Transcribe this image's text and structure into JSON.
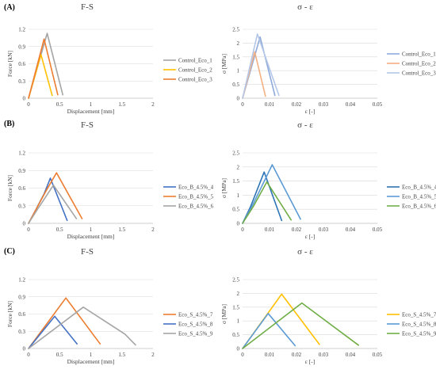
{
  "chart_data": [
    {
      "type": "line",
      "panel": "(A)",
      "title": "F-S",
      "xlabel": "Displacement [mm]",
      "ylabel": "Force [kN]",
      "xlim": [
        0,
        2
      ],
      "ylim": [
        0,
        1.2
      ],
      "xticks": [
        "0",
        "0.5",
        "1",
        "1.5",
        "2"
      ],
      "yticks": [
        "0",
        "0.3",
        "0.6",
        "0.9",
        "1.2"
      ],
      "grid": true,
      "legend": "right",
      "series": [
        {
          "name": "Control_Eco_1",
          "color": "#a5a5a5",
          "points": [
            [
              0,
              0
            ],
            [
              0.3,
              1.13
            ],
            [
              0.55,
              0.06
            ]
          ]
        },
        {
          "name": "Control_Eco_2",
          "color": "#ffc000",
          "points": [
            [
              0,
              0
            ],
            [
              0.2,
              0.76
            ],
            [
              0.38,
              0.05
            ]
          ]
        },
        {
          "name": "Control_Eco_3",
          "color": "#ed7d31",
          "points": [
            [
              0,
              0
            ],
            [
              0.25,
              1.03
            ],
            [
              0.47,
              0.06
            ]
          ]
        }
      ]
    },
    {
      "type": "line",
      "panel": "",
      "title": "σ - ε",
      "xlabel": "ε [-]",
      "ylabel": "σ [MPa]",
      "xlim": [
        0,
        0.05
      ],
      "ylim": [
        0,
        2.5
      ],
      "xticks": [
        "0",
        "0.01",
        "0.02",
        "0.03",
        "0.04",
        "0.05"
      ],
      "yticks": [
        "0",
        "0.5",
        "1",
        "1.5",
        "2",
        "2.5"
      ],
      "grid": true,
      "legend": "right",
      "series": [
        {
          "name": "Control_Eco_1",
          "color": "#8faadc",
          "points": [
            [
              0,
              0
            ],
            [
              0.0065,
              2.22
            ],
            [
              0.012,
              0.1
            ]
          ]
        },
        {
          "name": "Control_Eco_2",
          "color": "#f4b183",
          "points": [
            [
              0,
              0
            ],
            [
              0.0045,
              1.68
            ],
            [
              0.0085,
              0.07
            ]
          ]
        },
        {
          "name": "Control_Eco_3",
          "color": "#b4c7e7",
          "points": [
            [
              0,
              0
            ],
            [
              0.0055,
              2.33
            ],
            [
              0.0135,
              0.1
            ]
          ]
        }
      ]
    },
    {
      "type": "line",
      "panel": "(B)",
      "title": "F-S",
      "xlabel": "Displacement [mm]",
      "ylabel": "Force [kN]",
      "xlim": [
        0,
        2
      ],
      "ylim": [
        0,
        1.2
      ],
      "xticks": [
        "0",
        "0.5",
        "1",
        "1.5",
        "2"
      ],
      "yticks": [
        "0",
        "0.3",
        "0.6",
        "0.9",
        "1.2"
      ],
      "grid": true,
      "legend": "right",
      "series": [
        {
          "name": "Eco_B_4.5%_4",
          "color": "#4472c4",
          "points": [
            [
              0,
              0
            ],
            [
              0.1,
              0.2
            ],
            [
              0.25,
              0.5
            ],
            [
              0.35,
              0.77
            ],
            [
              0.62,
              0.05
            ]
          ]
        },
        {
          "name": "Eco_B_4.5%_5",
          "color": "#ed7d31",
          "points": [
            [
              0,
              0
            ],
            [
              0.1,
              0.2
            ],
            [
              0.28,
              0.55
            ],
            [
              0.45,
              0.86
            ],
            [
              0.86,
              0.08
            ]
          ]
        },
        {
          "name": "Eco_B_4.5%_6",
          "color": "#a5a5a5",
          "points": [
            [
              0,
              0
            ],
            [
              0.15,
              0.25
            ],
            [
              0.4,
              0.65
            ],
            [
              0.77,
              0.08
            ]
          ]
        }
      ]
    },
    {
      "type": "line",
      "panel": "",
      "title": "σ - ε",
      "xlabel": "ε [-]",
      "ylabel": "σ [MPa]",
      "xlim": [
        0,
        0.05
      ],
      "ylim": [
        0,
        2.5
      ],
      "xticks": [
        "0",
        "0.01",
        "0.02",
        "0.03",
        "0.04",
        "0.05"
      ],
      "yticks": [
        "0",
        "0.5",
        "1",
        "1.5",
        "2",
        "2.5"
      ],
      "grid": true,
      "legend": "right",
      "series": [
        {
          "name": "Eco_B_4.5%_4",
          "color": "#2e75b6",
          "points": [
            [
              0,
              0
            ],
            [
              0.003,
              0.6
            ],
            [
              0.008,
              1.82
            ],
            [
              0.0145,
              0.1
            ]
          ]
        },
        {
          "name": "Eco_B_4.5%_5",
          "color": "#5b9bd5",
          "points": [
            [
              0,
              0
            ],
            [
              0.004,
              0.7
            ],
            [
              0.011,
              2.08
            ],
            [
              0.0215,
              0.15
            ]
          ]
        },
        {
          "name": "Eco_B_4.5%_6",
          "color": "#70ad47",
          "points": [
            [
              0,
              0
            ],
            [
              0.004,
              0.6
            ],
            [
              0.009,
              1.47
            ],
            [
              0.018,
              0.12
            ]
          ]
        }
      ]
    },
    {
      "type": "line",
      "panel": "(C)",
      "title": "F-S",
      "xlabel": "Displacement [mm]",
      "ylabel": "Force [kN]",
      "xlim": [
        0,
        2
      ],
      "ylim": [
        0,
        1.2
      ],
      "xticks": [
        "0",
        "0.5",
        "1",
        "1.5",
        "2"
      ],
      "yticks": [
        "0",
        "0.3",
        "0.6",
        "0.9",
        "1.2"
      ],
      "grid": true,
      "legend": "right",
      "series": [
        {
          "name": "Eco_S_4.5%_7",
          "color": "#ed7d31",
          "points": [
            [
              0,
              0
            ],
            [
              0.6,
              0.88
            ],
            [
              1.15,
              0.08
            ]
          ]
        },
        {
          "name": "Eco_S_4.5%_8",
          "color": "#4472c4",
          "points": [
            [
              0,
              0
            ],
            [
              0.42,
              0.56
            ],
            [
              0.78,
              0.08
            ]
          ]
        },
        {
          "name": "Eco_S_4.5%_9",
          "color": "#a5a5a5",
          "points": [
            [
              0,
              0
            ],
            [
              0.88,
              0.72
            ],
            [
              1.55,
              0.25
            ],
            [
              1.72,
              0.06
            ]
          ]
        }
      ]
    },
    {
      "type": "line",
      "panel": "",
      "title": "σ - ε",
      "xlabel": "ε [-]",
      "ylabel": "σ [MPa]",
      "xlim": [
        0,
        0.05
      ],
      "ylim": [
        0,
        2.5
      ],
      "xticks": [
        "0",
        "0.01",
        "0.02",
        "0.03",
        "0.04",
        "0.05"
      ],
      "yticks": [
        "0",
        "0.5",
        "1",
        "1.5",
        "2",
        "2.5"
      ],
      "grid": true,
      "legend": "right",
      "series": [
        {
          "name": "Eco_S_4.5%_7",
          "color": "#ffc000",
          "points": [
            [
              0,
              0
            ],
            [
              0.0145,
              1.97
            ],
            [
              0.0285,
              0.15
            ]
          ]
        },
        {
          "name": "Eco_S_4.5%_8",
          "color": "#5b9bd5",
          "points": [
            [
              0,
              0
            ],
            [
              0.0095,
              1.27
            ],
            [
              0.0195,
              0.1
            ]
          ]
        },
        {
          "name": "Eco_S_4.5%_9",
          "color": "#70ad47",
          "points": [
            [
              0,
              0
            ],
            [
              0.022,
              1.65
            ],
            [
              0.043,
              0.12
            ]
          ]
        }
      ]
    }
  ]
}
